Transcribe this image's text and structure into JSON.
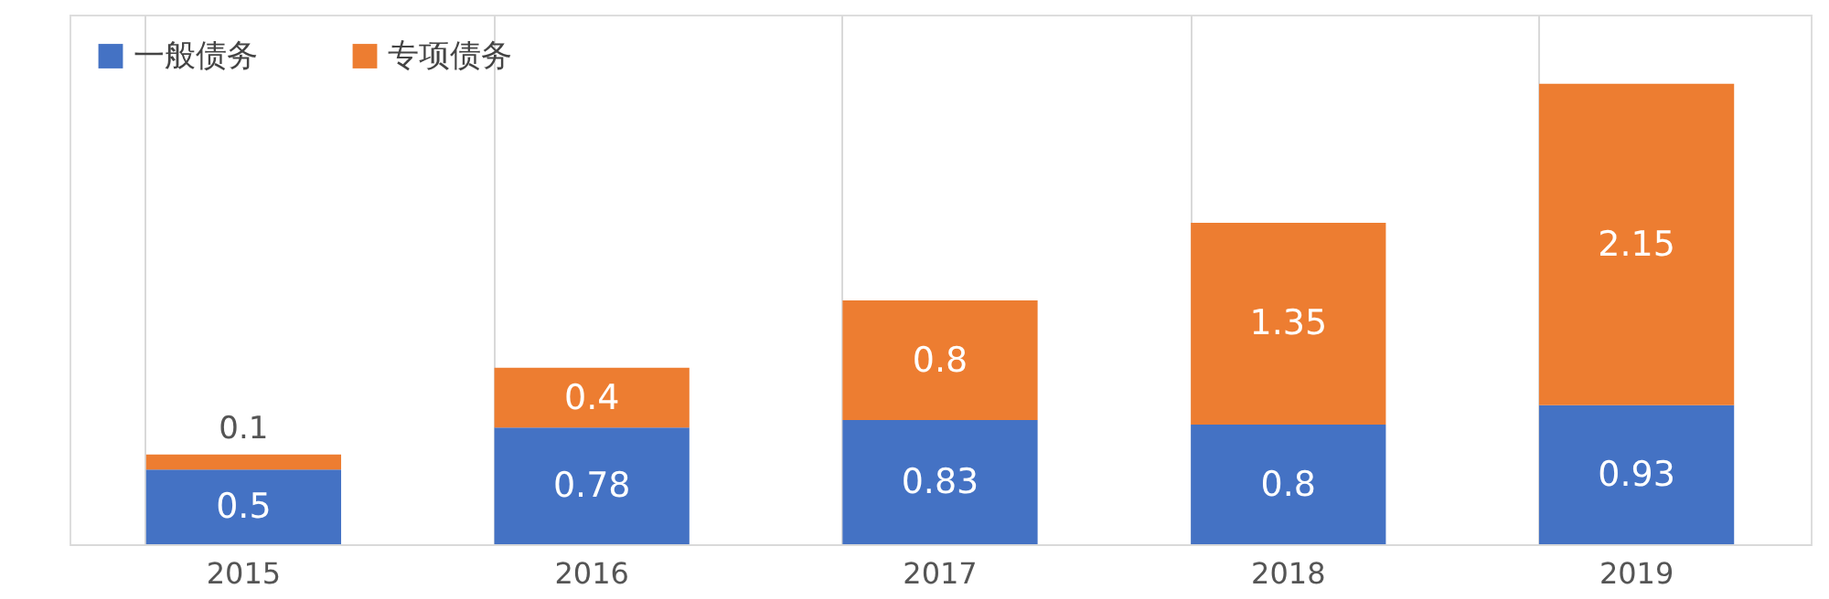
{
  "chart_data": {
    "type": "bar",
    "stacked": true,
    "categories": [
      "2015",
      "2016",
      "2017",
      "2018",
      "2019"
    ],
    "series": [
      {
        "name": "一般债务",
        "color": "#4472c4",
        "values": [
          0.5,
          0.78,
          0.83,
          0.8,
          0.93
        ]
      },
      {
        "name": "专项债务",
        "color": "#ed7d31",
        "values": [
          0.1,
          0.4,
          0.8,
          1.35,
          2.15
        ]
      }
    ],
    "data_labels": true,
    "grid": "x",
    "legend": "top left"
  }
}
